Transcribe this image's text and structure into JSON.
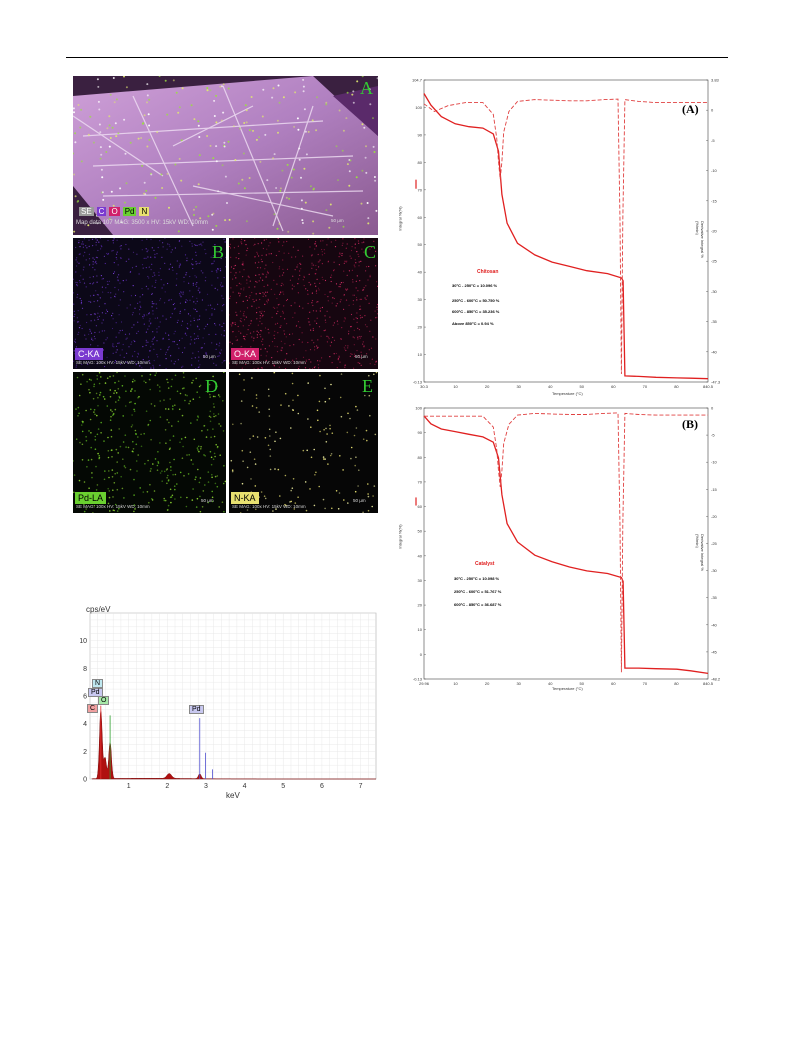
{
  "mapping": {
    "panels": [
      {
        "letter": "A",
        "legend": [
          "SE",
          "C",
          "O",
          "Pd",
          "N"
        ],
        "meta": [
          "Map data 107",
          "MAG: 3500 x",
          "HV: 15kV",
          "WD: 10mm"
        ],
        "scale": "50 µm"
      },
      {
        "letter": "B",
        "tag": "C-KA",
        "meta": [
          "C-KA",
          "SE MAG: 100x HV: 15kV WD: 10mm"
        ],
        "scale": "50 µm"
      },
      {
        "letter": "C",
        "tag": "O-KA",
        "meta": [
          "O-KA",
          "SE MAG: 100x HV: 15kV WD: 10mm"
        ],
        "scale": "50 µm"
      },
      {
        "letter": "D",
        "tag": "Pd-LA",
        "meta": [
          "Pd-LA",
          "SE MAG: 100x HV: 15kV WD: 10mm"
        ],
        "scale": "50 µm"
      },
      {
        "letter": "E",
        "tag": "N-KA",
        "meta": [
          "N-KA",
          "SE MAG: 100x HV: 15kV WD: 10mm"
        ],
        "scale": "50 µm"
      }
    ]
  },
  "spectrum": {
    "ylabel": "cps/eV",
    "xlabel": "keV",
    "peak_tags": {
      "n": "N",
      "pd": "Pd",
      "c": "C",
      "o": "O",
      "pd2": "Pd"
    }
  },
  "tga_a": {
    "panel_label": "(A)",
    "sample": "Chitosan",
    "ranges": [
      "30°C - 250°C = 10.096 %",
      "250°C - 600°C = 50.750 %",
      "600°C - 850°C = 35.236 %",
      "Above 850°C = 0.94 %"
    ],
    "xlabel": "Temperature (°C)",
    "ylabel_left": "Integral %(%)",
    "ylabel_right": "Derivative Integral % (%/min)"
  },
  "tga_b": {
    "panel_label": "(B)",
    "sample": "Catalyst",
    "ranges": [
      "30°C - 250°C = 10.098 %",
      "250°C - 600°C = 51.767 %",
      "600°C - 850°C = 36.687 %"
    ],
    "xlabel": "Temperature (°C)",
    "ylabel_left": "Integral %(%)",
    "ylabel_right": "Derivative Integral % (%/min)"
  },
  "chart_data": [
    {
      "type": "area",
      "title": "",
      "xlabel": "keV",
      "ylabel": "cps/eV",
      "xlim": [
        0,
        7.4
      ],
      "ylim": [
        0,
        12
      ],
      "x_ticks": [
        1,
        2,
        3,
        4,
        5,
        6,
        7
      ],
      "y_ticks": [
        0,
        2,
        4,
        6,
        8,
        10
      ],
      "grid": true,
      "peaks": [
        {
          "label": "C",
          "x": 0.28,
          "y": 4.9,
          "color": "#b01010"
        },
        {
          "label": "N",
          "x": 0.39,
          "y": 1.5,
          "color": "#b01010"
        },
        {
          "label": "O",
          "x": 0.52,
          "y": 2.6,
          "color": "#b01010"
        },
        {
          "label": "Pd",
          "x": 2.84,
          "y": 0.35,
          "color": "#b01010"
        }
      ],
      "lines": [
        {
          "x": 0.28,
          "y": 5.3,
          "color": "#e03030"
        },
        {
          "x": 0.52,
          "y": 4.6,
          "color": "#30a030"
        },
        {
          "x": 2.84,
          "y": 4.4,
          "color": "#5050d0"
        },
        {
          "x": 2.99,
          "y": 1.9,
          "color": "#5050d0"
        },
        {
          "x": 3.17,
          "y": 0.7,
          "color": "#5050d0"
        }
      ],
      "bump": {
        "x": 2.05,
        "y": 0.35
      }
    },
    {
      "type": "line",
      "title": "",
      "xlabel": "Temperature (°C)",
      "xlim": [
        30,
        850
      ],
      "x_ticks": [
        "30.3",
        "10",
        "20",
        "30",
        "40",
        "50",
        "60",
        "70",
        "80",
        "840.5"
      ],
      "y_ticks_left": [
        "104.7",
        "100",
        "90",
        "80",
        "70",
        "60",
        "50",
        "40",
        "30",
        "20",
        "10",
        "-0.13"
      ],
      "y_ticks_right": [
        "3.83",
        "0",
        "-5",
        "-10",
        "-15",
        "-20",
        "-25",
        "-30",
        "-35",
        "-40",
        "-47.35"
      ],
      "series": [
        {
          "style": "solid",
          "x": [
            30,
            50,
            80,
            120,
            160,
            200,
            230,
            245,
            255,
            270,
            300,
            350,
            400,
            450,
            500,
            560,
            600,
            605,
            610,
            650,
            700,
            760,
            800,
            850
          ],
          "y": [
            100,
            96,
            92,
            89.5,
            88.5,
            88,
            86,
            80,
            65,
            55,
            48,
            44,
            41.5,
            40,
            38.5,
            37.5,
            36,
            35,
            2,
            1.8,
            1.5,
            1.3,
            1.2,
            1.0
          ]
        },
        {
          "style": "dashed",
          "x": [
            30,
            60,
            100,
            150,
            200,
            230,
            240,
            245,
            250,
            255,
            260,
            275,
            300,
            350,
            400,
            450,
            500,
            550,
            590,
            596,
            600,
            604,
            610,
            650,
            700,
            800,
            850
          ],
          "y": [
            -0.2,
            -1.5,
            -0.5,
            0,
            0,
            -2,
            -6,
            -10,
            -13,
            -10,
            -5,
            -1.5,
            0.2,
            0.5,
            0.4,
            0.3,
            0.3,
            0.5,
            0.6,
            -20,
            -46,
            -20,
            0.5,
            0.2,
            0,
            0,
            0
          ]
        }
      ]
    },
    {
      "type": "line",
      "title": "",
      "xlabel": "Temperature (°C)",
      "xlim": [
        30,
        850
      ],
      "x_ticks": [
        "29.96",
        "10",
        "20",
        "30",
        "40",
        "50",
        "60",
        "70",
        "80",
        "840.5"
      ],
      "y_ticks_left": [
        "100",
        "90",
        "80",
        "70",
        "60",
        "50",
        "40",
        "30",
        "20",
        "10",
        "0",
        "-0.13"
      ],
      "y_ticks_right": [
        "0",
        "-5",
        "-10",
        "-15",
        "-20",
        "-25",
        "-30",
        "-35",
        "-40",
        "-45",
        "-48.23"
      ],
      "series": [
        {
          "style": "solid",
          "x": [
            30,
            50,
            80,
            120,
            160,
            200,
            230,
            245,
            255,
            270,
            300,
            350,
            400,
            450,
            500,
            560,
            600,
            605,
            610,
            650,
            700,
            760,
            800,
            850
          ],
          "y": [
            100,
            97,
            95,
            94,
            93,
            92,
            90,
            84,
            70,
            59,
            52,
            47,
            44.5,
            42.5,
            41,
            40,
            38.5,
            37,
            4,
            4,
            3.8,
            3.6,
            3,
            2
          ]
        },
        {
          "style": "dashed",
          "x": [
            30,
            60,
            100,
            150,
            200,
            230,
            240,
            245,
            250,
            255,
            260,
            275,
            300,
            350,
            400,
            450,
            500,
            550,
            590,
            596,
            600,
            604,
            610,
            650,
            700,
            800,
            850
          ],
          "y": [
            0,
            0,
            0,
            0,
            0,
            -2,
            -6,
            -10,
            -13,
            -10,
            -5,
            -1.5,
            0.2,
            0.5,
            0.4,
            0.3,
            0.3,
            0.5,
            0.6,
            -20,
            -47,
            -20,
            0.5,
            0.3,
            0.2,
            0.2,
            0.2
          ]
        }
      ]
    }
  ]
}
